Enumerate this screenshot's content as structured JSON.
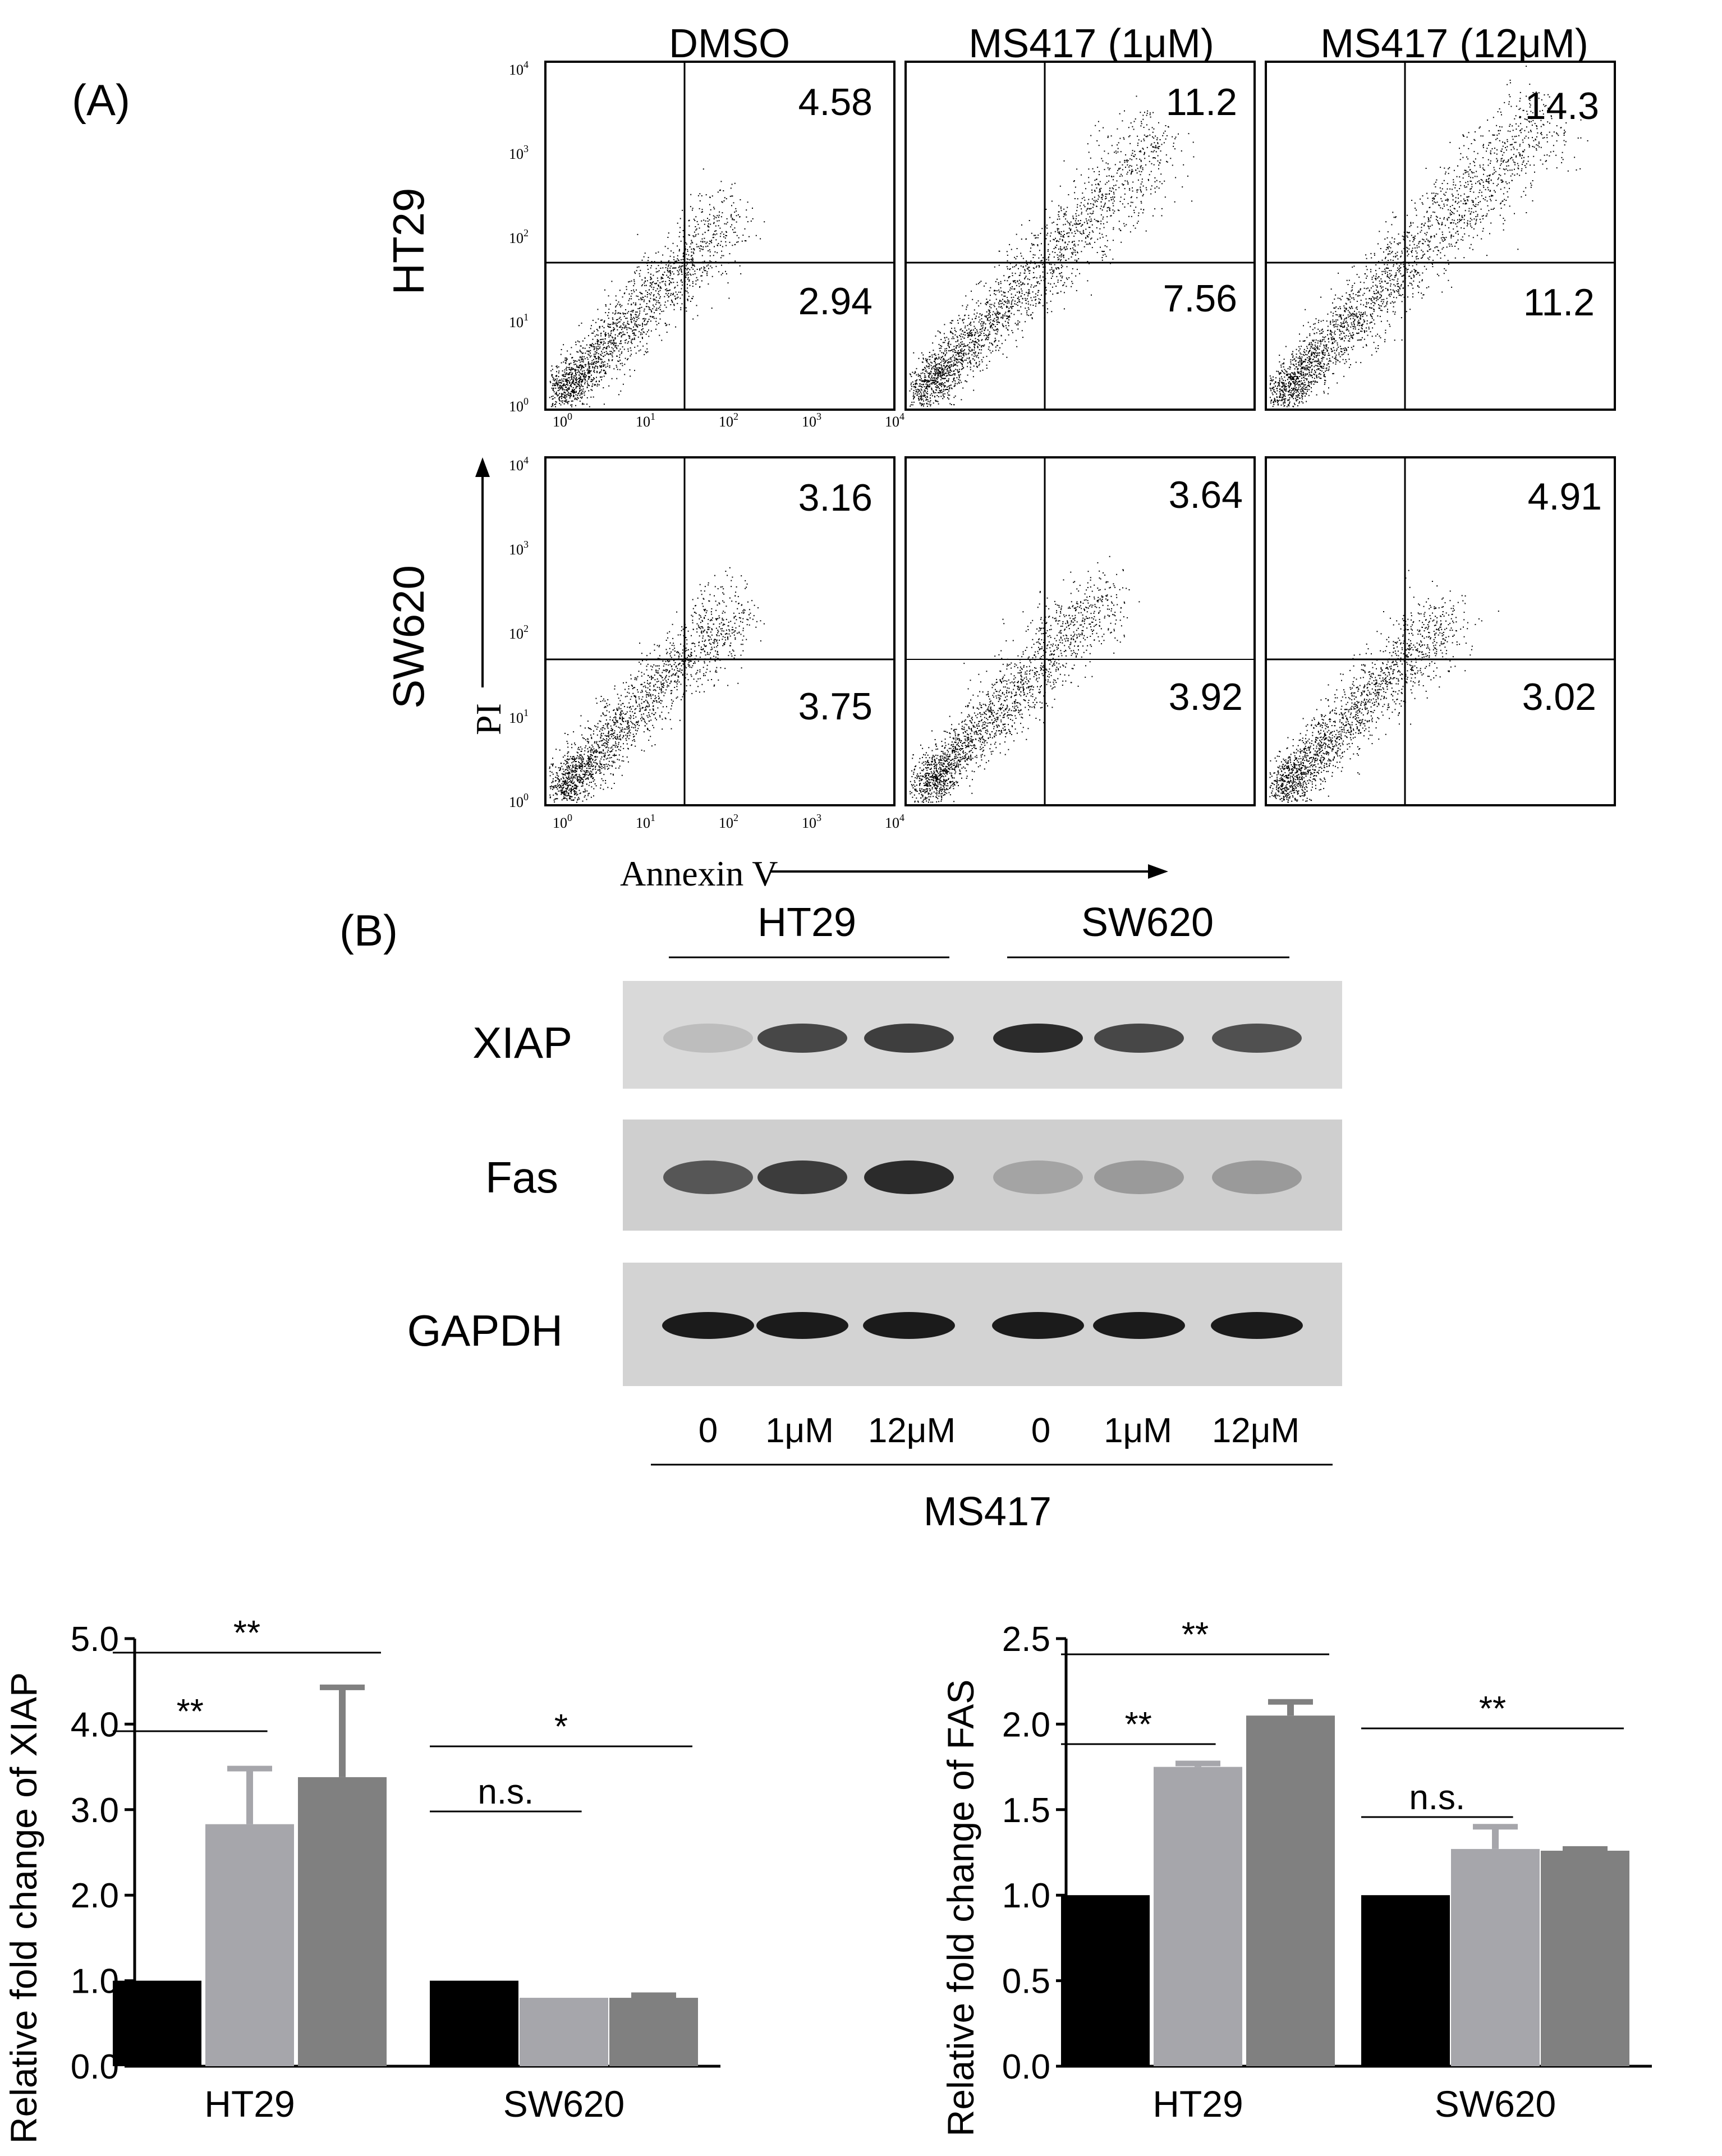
{
  "panel_a": {
    "label": "(A)",
    "conditions": [
      "DMSO",
      "MS417 (1μM)",
      "MS417 (12μM)"
    ],
    "cell_lines": [
      "HT29",
      "SW620"
    ],
    "quadrant_values": [
      [
        {
          "upper": "4.58",
          "lower": "2.94"
        },
        {
          "upper": "11.2",
          "lower": "7.56"
        },
        {
          "upper": "14.3",
          "lower": "11.2"
        }
      ],
      [
        {
          "upper": "3.16",
          "lower": "3.75"
        },
        {
          "upper": "3.64",
          "lower": "3.92"
        },
        {
          "upper": "4.91",
          "lower": "3.02"
        }
      ]
    ],
    "ticks": [
      "10",
      "10",
      "10",
      "10",
      "10"
    ],
    "tick_exponents": [
      "0",
      "1",
      "2",
      "3",
      "4"
    ],
    "y_axis_label": "PI",
    "x_axis_label": "Annexin V"
  },
  "panel_b": {
    "label": "(B)",
    "groups": [
      "HT29",
      "SW620"
    ],
    "bands": [
      "XIAP",
      "Fas",
      "GAPDH"
    ],
    "lanes": [
      "0",
      "1μM",
      "12μM",
      "0",
      "1μM",
      "12μM"
    ],
    "treatment": "MS417"
  },
  "colors": {
    "dmso": "#000000",
    "low_dose": "#a6a6ab",
    "high_dose": "#808080"
  },
  "chart_data": [
    {
      "type": "bar",
      "title": "",
      "ylabel": "Relative fold change of XIAP",
      "xlabel": "",
      "categories": [
        "HT29",
        "SW620"
      ],
      "series": [
        {
          "name": "0",
          "values": [
            1.0,
            1.0
          ],
          "errors": [
            0,
            0
          ]
        },
        {
          "name": "1μM",
          "values": [
            2.83,
            0.8
          ],
          "errors": [
            0.65,
            0
          ]
        },
        {
          "name": "12μM",
          "values": [
            3.38,
            0.8
          ],
          "errors": [
            1.05,
            0.03
          ]
        }
      ],
      "ylim": [
        0,
        5
      ],
      "yticks": [
        "0.0",
        "1.0",
        "2.0",
        "3.0",
        "4.0",
        "5.0"
      ],
      "significance": [
        {
          "group": "HT29",
          "from": "0",
          "to": "1μM",
          "label": "**"
        },
        {
          "group": "HT29",
          "from": "0",
          "to": "12μM",
          "label": "**"
        },
        {
          "group": "SW620",
          "from": "0",
          "to": "1μM",
          "label": "n.s."
        },
        {
          "group": "SW620",
          "from": "0",
          "to": "12μM",
          "label": "*"
        }
      ]
    },
    {
      "type": "bar",
      "title": "",
      "ylabel": "Relative fold change of FAS",
      "xlabel": "",
      "categories": [
        "HT29",
        "SW620"
      ],
      "series": [
        {
          "name": "0",
          "values": [
            1.0,
            1.0
          ],
          "errors": [
            0,
            0
          ]
        },
        {
          "name": "1μM",
          "values": [
            1.75,
            1.27
          ],
          "errors": [
            0.02,
            0.13
          ]
        },
        {
          "name": "12μM",
          "values": [
            2.05,
            1.26
          ],
          "errors": [
            0.08,
            0.01
          ]
        }
      ],
      "ylim": [
        0,
        2.5
      ],
      "yticks": [
        "0.0",
        "0.5",
        "1.0",
        "1.5",
        "2.0",
        "2.5"
      ],
      "significance": [
        {
          "group": "HT29",
          "from": "0",
          "to": "1μM",
          "label": "**"
        },
        {
          "group": "HT29",
          "from": "0",
          "to": "12μM",
          "label": "**"
        },
        {
          "group": "SW620",
          "from": "0",
          "to": "1μM",
          "label": "n.s."
        },
        {
          "group": "SW620",
          "from": "0",
          "to": "12μM",
          "label": "**"
        }
      ]
    }
  ]
}
